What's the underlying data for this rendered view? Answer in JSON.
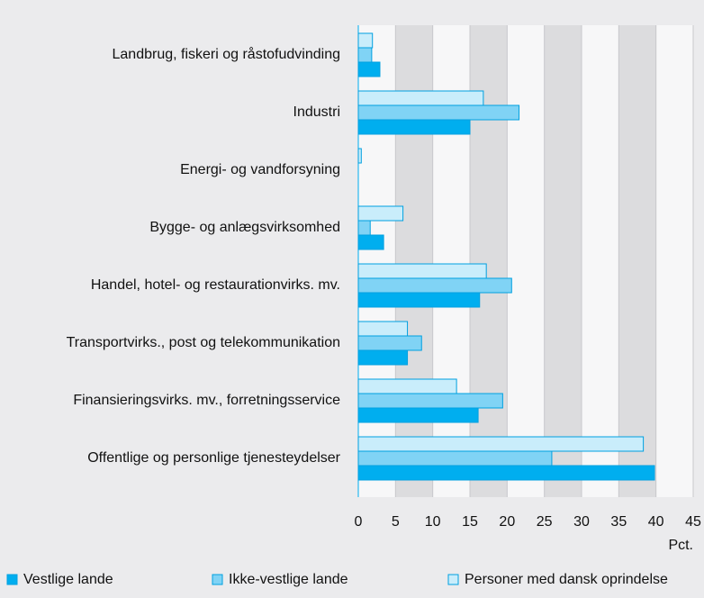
{
  "chart_data": {
    "type": "bar",
    "orientation": "horizontal",
    "categories": [
      "Landbrug, fiskeri og råstofudvinding",
      "Industri",
      "Energi- og vandforsyning",
      "Bygge- og anlægsvirksomhed",
      "Handel, hotel- og restaurationvirks. mv.",
      "Transportvirks., post og telekommunikation",
      "Finansieringsvirks. mv., forretningsservice",
      "Offentlige og personlige tjenesteydelser"
    ],
    "series": [
      {
        "name": "Vestlige lande",
        "color": "#00aeef",
        "values": [
          2.9,
          15,
          0,
          3.4,
          16.3,
          6.6,
          16.1,
          39.8
        ]
      },
      {
        "name": "Ikke-vestlige lande",
        "color": "#80d3f5",
        "values": [
          1.8,
          21.6,
          0,
          1.6,
          20.6,
          8.5,
          19.4,
          26
        ]
      },
      {
        "name": "Personer med dansk oprindelse",
        "color": "#c9edfb",
        "values": [
          1.9,
          16.8,
          0.4,
          6,
          17.2,
          6.6,
          13.2,
          38.3
        ]
      }
    ],
    "xlim": [
      0,
      45
    ],
    "xticks": [
      0,
      5,
      10,
      15,
      20,
      25,
      30,
      35,
      40,
      45
    ],
    "xlabel": "Pct.",
    "legend": "bottom"
  }
}
